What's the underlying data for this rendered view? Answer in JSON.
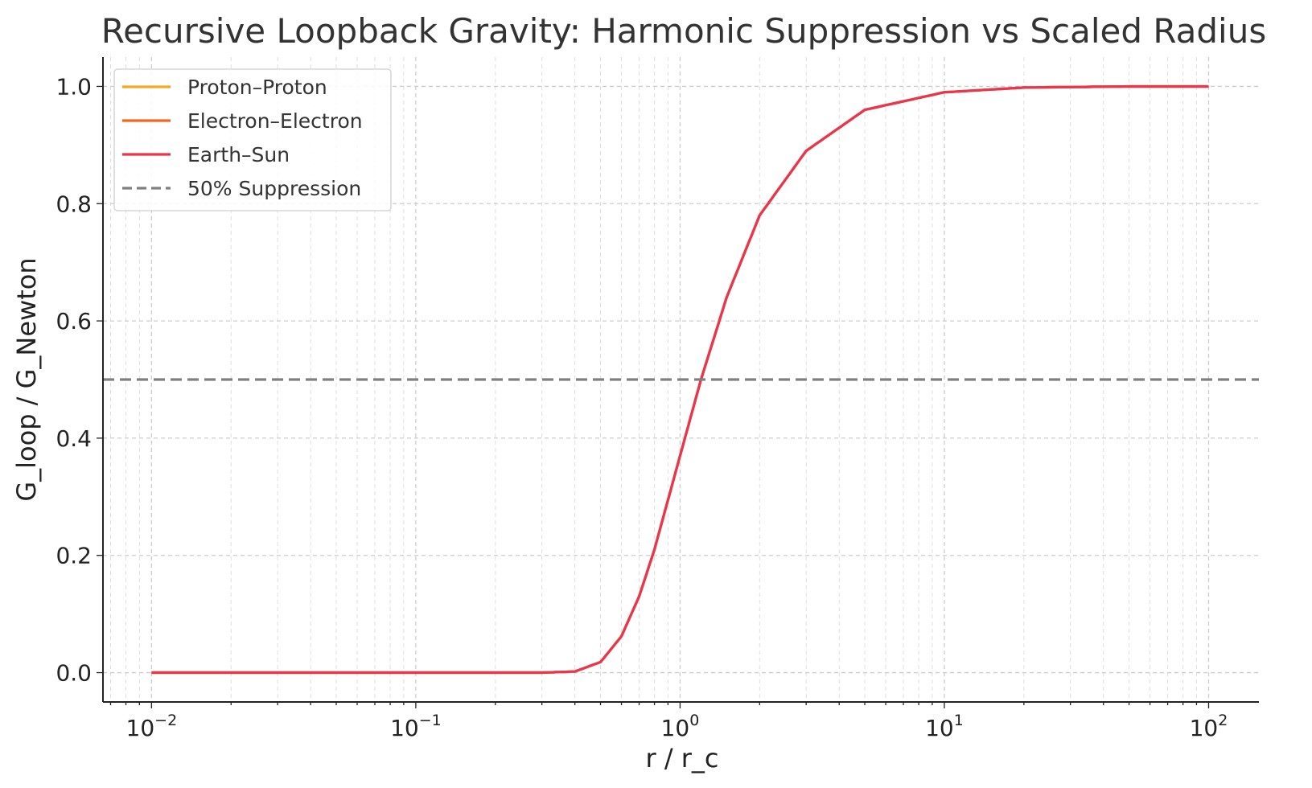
{
  "chart_data": {
    "type": "line",
    "title": "Recursive Loopback Gravity: Harmonic Suppression vs Scaled Radius",
    "xlabel": "r / r_c",
    "ylabel": "G_loop / G_Newton",
    "xscale": "log",
    "xlim": [
      0.00655,
      155
    ],
    "ylim": [
      -0.05,
      1.05
    ],
    "x_ticks": [
      {
        "value": 0.01,
        "base": "10",
        "exp": "−2"
      },
      {
        "value": 0.1,
        "base": "10",
        "exp": "−1"
      },
      {
        "value": 1,
        "base": "10",
        "exp": "0"
      },
      {
        "value": 10,
        "base": "10",
        "exp": "1"
      },
      {
        "value": 100,
        "base": "10",
        "exp": "2"
      }
    ],
    "y_ticks": [
      "0.0",
      "0.2",
      "0.4",
      "0.6",
      "0.8",
      "1.0"
    ],
    "grid": true,
    "legend_position": "top-left",
    "series": [
      {
        "name": "Proton–Proton",
        "color": "#f5a623",
        "style": "solid",
        "x": [
          0.01,
          0.1,
          0.3,
          0.4,
          0.5,
          0.6,
          0.7,
          0.8,
          1.0,
          1.2,
          1.5,
          2.0,
          3.0,
          5.0,
          10,
          20,
          50,
          100
        ],
        "y": [
          0.0,
          0.0,
          0.0,
          0.002,
          0.018,
          0.062,
          0.13,
          0.21,
          0.37,
          0.5,
          0.64,
          0.78,
          0.89,
          0.96,
          0.99,
          0.998,
          1.0,
          1.0
        ]
      },
      {
        "name": "Electron–Electron",
        "color": "#f26522",
        "style": "solid",
        "x": [
          0.01,
          0.1,
          0.3,
          0.4,
          0.5,
          0.6,
          0.7,
          0.8,
          1.0,
          1.2,
          1.5,
          2.0,
          3.0,
          5.0,
          10,
          20,
          50,
          100
        ],
        "y": [
          0.0,
          0.0,
          0.0,
          0.002,
          0.018,
          0.062,
          0.13,
          0.21,
          0.37,
          0.5,
          0.64,
          0.78,
          0.89,
          0.96,
          0.99,
          0.998,
          1.0,
          1.0
        ]
      },
      {
        "name": "Earth–Sun",
        "color": "#e8364f",
        "style": "solid",
        "x": [
          0.01,
          0.1,
          0.3,
          0.4,
          0.5,
          0.6,
          0.7,
          0.8,
          1.0,
          1.2,
          1.5,
          2.0,
          3.0,
          5.0,
          10,
          20,
          50,
          100
        ],
        "y": [
          0.0,
          0.0,
          0.0,
          0.002,
          0.018,
          0.062,
          0.13,
          0.21,
          0.37,
          0.5,
          0.64,
          0.78,
          0.89,
          0.96,
          0.99,
          0.998,
          1.0,
          1.0
        ]
      },
      {
        "name": "50% Suppression",
        "color": "#808080",
        "style": "dashed",
        "x": [
          0.00655,
          155
        ],
        "y": [
          0.5,
          0.5
        ]
      }
    ]
  }
}
